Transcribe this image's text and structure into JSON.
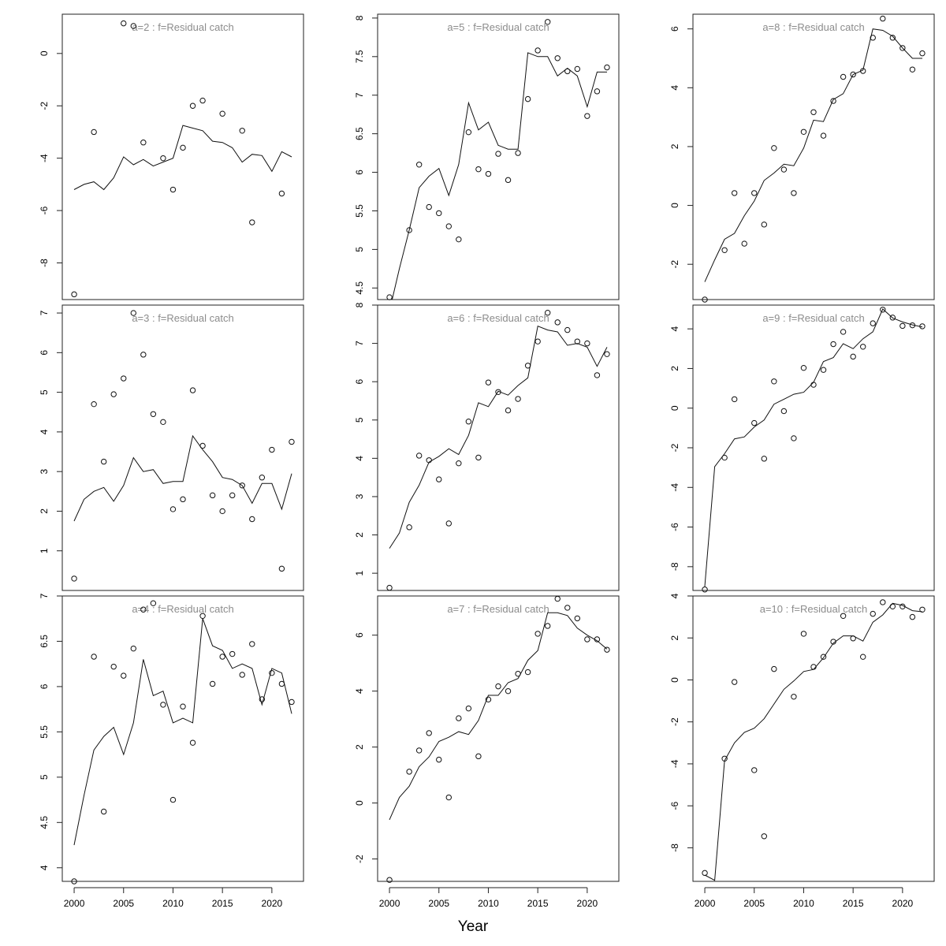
{
  "figure": {
    "xlabel": "Year"
  },
  "chart_data": [
    {
      "type": "line",
      "title": "a=2  :  f=Residual catch",
      "ylim": [
        -9.4,
        1.5
      ],
      "yticks": [
        0,
        -2,
        -4,
        -6,
        -8
      ],
      "xticks": [
        2000,
        2005,
        2010,
        2015,
        2020
      ],
      "x": [
        2000,
        2001,
        2002,
        2003,
        2004,
        2005,
        2006,
        2007,
        2008,
        2009,
        2010,
        2011,
        2012,
        2013,
        2014,
        2015,
        2016,
        2017,
        2018,
        2019,
        2020,
        2021,
        2022
      ],
      "fitted": [
        -5.2,
        -5.0,
        -4.9,
        -5.2,
        -4.75,
        -3.95,
        -4.25,
        -4.05,
        -4.3,
        -4.15,
        -4.0,
        -2.75,
        -2.85,
        -2.95,
        -3.35,
        -3.4,
        -3.6,
        -4.15,
        -3.85,
        -3.9,
        -4.5,
        -3.75,
        -3.95
      ],
      "observed_x": [
        2000,
        2002,
        2005,
        2006,
        2007,
        2009,
        2010,
        2011,
        2012,
        2013,
        2015,
        2017,
        2018,
        2021
      ],
      "observed_y": [
        -9.2,
        -3.0,
        1.15,
        1.05,
        -3.4,
        -4.0,
        -5.2,
        -3.6,
        -2.0,
        -1.8,
        -2.3,
        -2.95,
        -6.45,
        -5.35
      ]
    },
    {
      "type": "line",
      "title": "a=3  :  f=Residual catch",
      "ylim": [
        0.0,
        7.2
      ],
      "yticks": [
        1,
        2,
        3,
        4,
        5,
        6,
        7
      ],
      "xticks": [
        2000,
        2005,
        2010,
        2015,
        2020
      ],
      "x": [
        2000,
        2001,
        2002,
        2003,
        2004,
        2005,
        2006,
        2007,
        2008,
        2009,
        2010,
        2011,
        2012,
        2013,
        2014,
        2015,
        2016,
        2017,
        2018,
        2019,
        2020,
        2021,
        2022
      ],
      "fitted": [
        1.75,
        2.3,
        2.5,
        2.6,
        2.25,
        2.65,
        3.35,
        3.0,
        3.05,
        2.7,
        2.75,
        2.75,
        3.9,
        3.55,
        3.25,
        2.85,
        2.8,
        2.65,
        2.2,
        2.7,
        2.7,
        2.05,
        2.95
      ],
      "observed_x": [
        2000,
        2002,
        2003,
        2004,
        2005,
        2006,
        2007,
        2008,
        2009,
        2010,
        2011,
        2012,
        2013,
        2014,
        2015,
        2016,
        2017,
        2018,
        2019,
        2020,
        2021,
        2022
      ],
      "observed_y": [
        0.3,
        4.7,
        3.25,
        4.95,
        5.35,
        7.0,
        5.95,
        4.45,
        4.25,
        2.05,
        2.3,
        5.05,
        3.65,
        2.4,
        2.0,
        2.4,
        2.65,
        1.8,
        2.85,
        3.55,
        0.55,
        3.75
      ]
    },
    {
      "type": "line",
      "title": "a=4  :  f=Residual catch",
      "ylim": [
        3.85,
        7.0
      ],
      "yticks": [
        4.0,
        4.5,
        5.0,
        5.5,
        6.0,
        6.5,
        7.0
      ],
      "xticks": [
        2000,
        2005,
        2010,
        2015,
        2020
      ],
      "x": [
        2000,
        2001,
        2002,
        2003,
        2004,
        2005,
        2006,
        2007,
        2008,
        2009,
        2010,
        2011,
        2012,
        2013,
        2014,
        2015,
        2016,
        2017,
        2018,
        2019,
        2020,
        2021,
        2022
      ],
      "fitted": [
        4.25,
        4.8,
        5.3,
        5.45,
        5.55,
        5.25,
        5.6,
        6.3,
        5.9,
        5.95,
        5.6,
        5.65,
        5.6,
        6.75,
        6.45,
        6.4,
        6.2,
        6.25,
        6.2,
        5.8,
        6.2,
        6.15,
        5.7
      ],
      "observed_x": [
        2000,
        2002,
        2003,
        2004,
        2005,
        2006,
        2007,
        2008,
        2009,
        2010,
        2011,
        2012,
        2013,
        2014,
        2015,
        2016,
        2017,
        2018,
        2019,
        2020,
        2021,
        2022
      ],
      "observed_y": [
        3.85,
        6.33,
        4.62,
        6.22,
        6.12,
        6.42,
        6.85,
        6.92,
        5.8,
        4.75,
        5.78,
        5.38,
        6.78,
        6.03,
        6.33,
        6.36,
        6.13,
        6.47,
        5.86,
        6.15,
        6.03,
        5.83
      ]
    },
    {
      "type": "line",
      "title": "a=5  :  f=Residual catch",
      "ylim": [
        4.35,
        8.05
      ],
      "yticks": [
        4.5,
        5.0,
        5.5,
        6.0,
        6.5,
        7.0,
        7.5,
        8.0
      ],
      "xticks": [
        2000,
        2005,
        2010,
        2015,
        2020
      ],
      "x": [
        2000,
        2001,
        2002,
        2003,
        2004,
        2005,
        2006,
        2007,
        2008,
        2009,
        2010,
        2011,
        2012,
        2013,
        2014,
        2015,
        2016,
        2017,
        2018,
        2019,
        2020,
        2021,
        2022
      ],
      "fitted": [
        4.2,
        4.75,
        5.25,
        5.8,
        5.95,
        6.05,
        5.7,
        6.1,
        6.9,
        6.55,
        6.65,
        6.35,
        6.3,
        6.3,
        7.55,
        7.5,
        7.5,
        7.25,
        7.35,
        7.25,
        6.85,
        7.3,
        7.3
      ],
      "observed_x": [
        2000,
        2002,
        2003,
        2004,
        2005,
        2006,
        2007,
        2008,
        2009,
        2010,
        2011,
        2012,
        2013,
        2014,
        2015,
        2016,
        2017,
        2018,
        2019,
        2020,
        2021,
        2022
      ],
      "observed_y": [
        4.38,
        5.25,
        6.1,
        5.55,
        5.47,
        5.3,
        5.13,
        6.52,
        6.04,
        5.98,
        6.24,
        5.9,
        6.25,
        6.95,
        7.58,
        7.95,
        7.48,
        7.31,
        7.34,
        6.73,
        7.05,
        7.36
      ]
    },
    {
      "type": "line",
      "title": "a=6  :  f=Residual catch",
      "ylim": [
        0.55,
        8.0
      ],
      "yticks": [
        1,
        2,
        3,
        4,
        5,
        6,
        7,
        8
      ],
      "xticks": [
        2000,
        2005,
        2010,
        2015,
        2020
      ],
      "x": [
        2000,
        2001,
        2002,
        2003,
        2004,
        2005,
        2006,
        2007,
        2008,
        2009,
        2010,
        2011,
        2012,
        2013,
        2014,
        2015,
        2016,
        2017,
        2018,
        2019,
        2020,
        2021,
        2022
      ],
      "fitted": [
        1.65,
        2.05,
        2.85,
        3.3,
        3.9,
        4.05,
        4.25,
        4.1,
        4.6,
        5.45,
        5.35,
        5.75,
        5.65,
        5.9,
        6.1,
        7.45,
        7.35,
        7.3,
        6.95,
        7.0,
        6.9,
        6.4,
        6.9
      ],
      "observed_x": [
        2000,
        2002,
        2003,
        2004,
        2005,
        2006,
        2007,
        2008,
        2009,
        2010,
        2011,
        2012,
        2013,
        2014,
        2015,
        2016,
        2017,
        2018,
        2019,
        2020,
        2021,
        2022
      ],
      "observed_y": [
        0.62,
        2.2,
        4.07,
        3.95,
        3.45,
        2.3,
        3.87,
        4.96,
        4.02,
        5.98,
        5.73,
        5.25,
        5.55,
        6.42,
        7.05,
        7.8,
        7.55,
        7.35,
        7.05,
        7.0,
        6.17,
        6.72
      ]
    },
    {
      "type": "line",
      "title": "a=7  :  f=Residual catch",
      "ylim": [
        -2.8,
        7.4
      ],
      "yticks": [
        -2,
        0,
        2,
        4,
        6
      ],
      "xticks": [
        2000,
        2005,
        2010,
        2015,
        2020
      ],
      "x": [
        2000,
        2001,
        2002,
        2003,
        2004,
        2005,
        2006,
        2007,
        2008,
        2009,
        2010,
        2011,
        2012,
        2013,
        2014,
        2015,
        2016,
        2017,
        2018,
        2019,
        2020,
        2021,
        2022
      ],
      "fitted": [
        -0.6,
        0.2,
        0.6,
        1.3,
        1.65,
        2.2,
        2.35,
        2.55,
        2.45,
        2.95,
        3.85,
        3.85,
        4.3,
        4.45,
        5.1,
        5.45,
        6.8,
        6.8,
        6.7,
        6.25,
        6.0,
        5.8,
        5.5
      ],
      "observed_x": [
        2000,
        2002,
        2003,
        2004,
        2005,
        2006,
        2007,
        2008,
        2009,
        2010,
        2011,
        2012,
        2013,
        2014,
        2015,
        2016,
        2017,
        2018,
        2019,
        2020,
        2021,
        2022
      ],
      "observed_y": [
        -2.75,
        1.12,
        1.88,
        2.5,
        1.55,
        0.2,
        3.03,
        3.38,
        1.67,
        3.7,
        4.17,
        4.0,
        4.62,
        4.68,
        6.05,
        6.33,
        7.3,
        6.98,
        6.6,
        5.85,
        5.85,
        5.48
      ]
    },
    {
      "type": "line",
      "title": "a=8  :  f=Residual catch",
      "ylim": [
        -3.2,
        6.5
      ],
      "yticks": [
        -2,
        0,
        2,
        4,
        6
      ],
      "xticks": [
        2000,
        2005,
        2010,
        2015,
        2020
      ],
      "x": [
        2000,
        2001,
        2002,
        2003,
        2004,
        2005,
        2006,
        2007,
        2008,
        2009,
        2010,
        2011,
        2012,
        2013,
        2014,
        2015,
        2016,
        2017,
        2018,
        2019,
        2020,
        2021,
        2022
      ],
      "fitted": [
        -2.6,
        -1.85,
        -1.15,
        -0.95,
        -0.35,
        0.15,
        0.85,
        1.1,
        1.4,
        1.35,
        1.95,
        2.9,
        2.85,
        3.6,
        3.8,
        4.45,
        4.6,
        6.0,
        5.95,
        5.75,
        5.35,
        5.0,
        5.0
      ],
      "observed_x": [
        2000,
        2002,
        2003,
        2004,
        2005,
        2006,
        2007,
        2008,
        2009,
        2010,
        2011,
        2012,
        2013,
        2014,
        2015,
        2016,
        2017,
        2018,
        2019,
        2020,
        2021,
        2022
      ],
      "observed_y": [
        -3.2,
        -1.52,
        0.42,
        -1.3,
        0.42,
        -0.65,
        1.95,
        1.22,
        0.42,
        2.5,
        3.17,
        2.37,
        3.55,
        4.37,
        4.45,
        4.57,
        5.7,
        6.35,
        5.7,
        5.35,
        4.62,
        5.17
      ]
    },
    {
      "type": "line",
      "title": "a=9  :  f=Residual catch",
      "ylim": [
        -9.2,
        5.2
      ],
      "yticks": [
        4,
        2,
        0,
        -2,
        -4,
        -6,
        -8
      ],
      "xticks": [
        2000,
        2005,
        2010,
        2015,
        2020
      ],
      "x": [
        2000,
        2001,
        2002,
        2003,
        2004,
        2005,
        2006,
        2007,
        2008,
        2009,
        2010,
        2011,
        2012,
        2013,
        2014,
        2015,
        2016,
        2017,
        2018,
        2019,
        2020,
        2021,
        2022
      ],
      "fitted": [
        -9.0,
        -2.95,
        -2.3,
        -1.55,
        -1.45,
        -0.95,
        -0.6,
        0.2,
        0.45,
        0.7,
        0.8,
        1.3,
        2.35,
        2.55,
        3.25,
        3.0,
        3.5,
        3.85,
        5.0,
        4.55,
        4.35,
        4.2,
        4.1
      ],
      "observed_x": [
        2000,
        2002,
        2003,
        2005,
        2006,
        2007,
        2008,
        2009,
        2010,
        2011,
        2012,
        2013,
        2014,
        2015,
        2016,
        2017,
        2018,
        2019,
        2020,
        2021,
        2022
      ],
      "observed_y": [
        -9.15,
        -2.5,
        0.45,
        -0.75,
        -2.55,
        1.35,
        -0.15,
        -1.52,
        2.03,
        1.18,
        1.93,
        3.23,
        3.85,
        2.6,
        3.1,
        4.28,
        4.97,
        4.57,
        4.15,
        4.18,
        4.13
      ]
    },
    {
      "type": "line",
      "title": "a=10  :  f=Residual catch",
      "ylim": [
        -9.6,
        4.0
      ],
      "yticks": [
        4,
        2,
        0,
        -2,
        -4,
        -6,
        -8
      ],
      "xticks": [
        2000,
        2005,
        2010,
        2015,
        2020
      ],
      "x": [
        2000,
        2001,
        2002,
        2003,
        2004,
        2005,
        2006,
        2007,
        2008,
        2009,
        2010,
        2011,
        2012,
        2013,
        2014,
        2015,
        2016,
        2017,
        2018,
        2019,
        2020,
        2021,
        2022
      ],
      "fitted": [
        -9.3,
        -9.55,
        -3.85,
        -3.0,
        -2.5,
        -2.3,
        -1.85,
        -1.15,
        -0.45,
        -0.05,
        0.4,
        0.5,
        1.05,
        1.75,
        2.1,
        2.1,
        1.85,
        2.75,
        3.1,
        3.65,
        3.55,
        3.3,
        3.25
      ],
      "observed_x": [
        2000,
        2002,
        2003,
        2005,
        2006,
        2007,
        2009,
        2010,
        2011,
        2012,
        2013,
        2014,
        2015,
        2016,
        2017,
        2018,
        2019,
        2020,
        2021,
        2022
      ],
      "observed_y": [
        -9.2,
        -3.75,
        -0.1,
        -4.3,
        -7.45,
        0.52,
        -0.8,
        2.2,
        0.62,
        1.1,
        1.82,
        3.05,
        1.98,
        1.1,
        3.15,
        3.7,
        3.5,
        3.5,
        3.0,
        3.35
      ]
    }
  ]
}
